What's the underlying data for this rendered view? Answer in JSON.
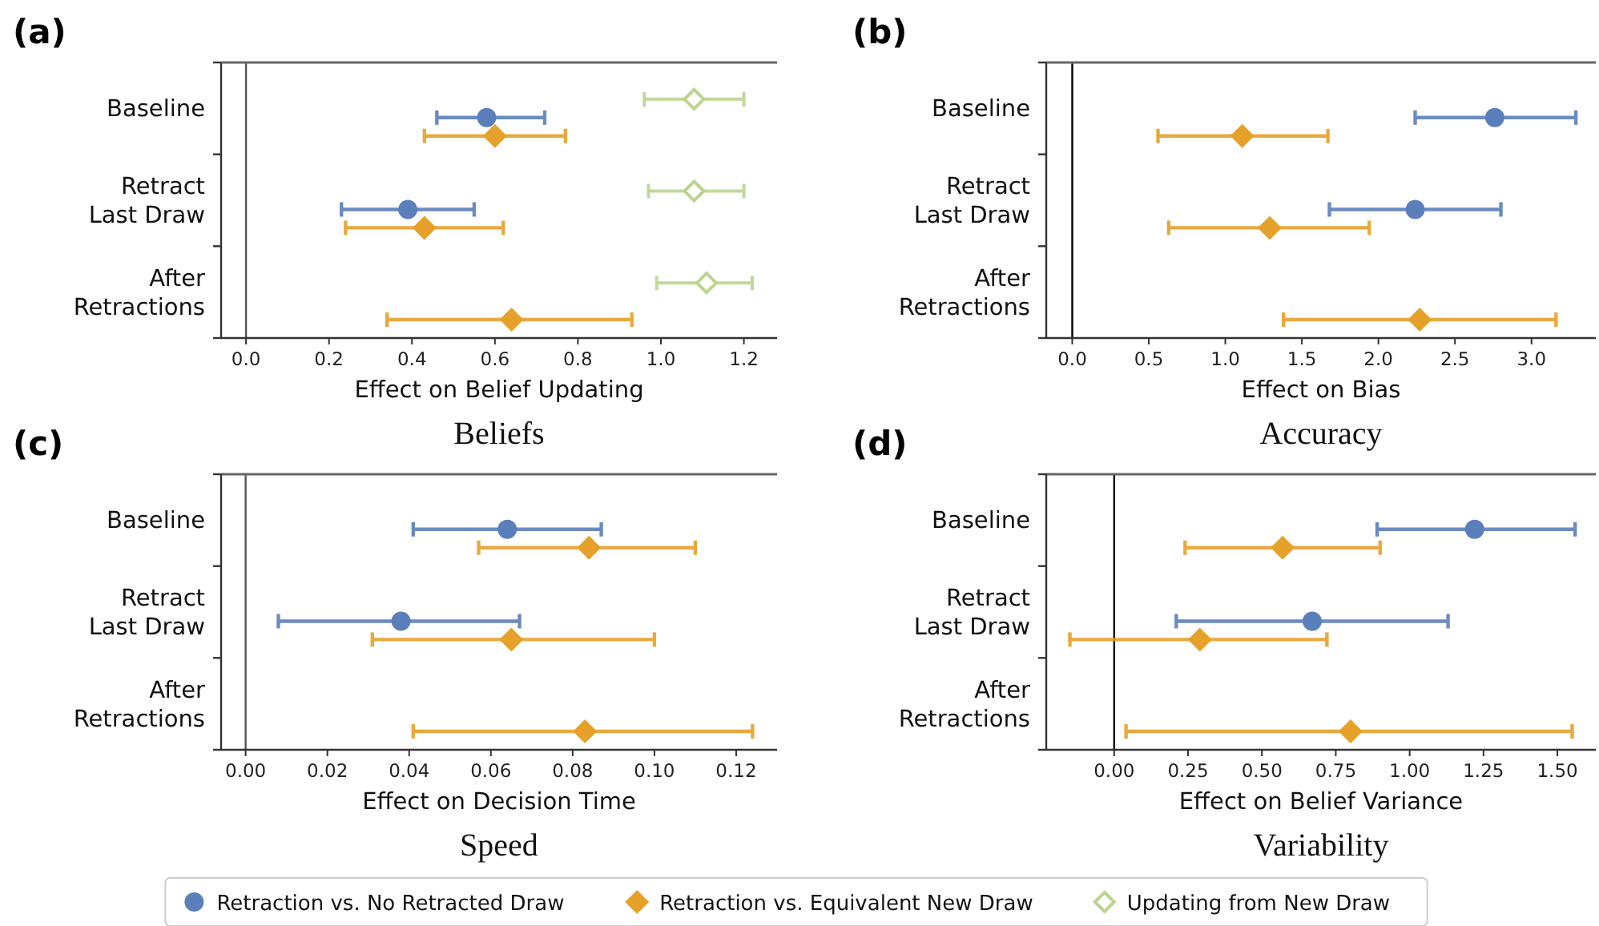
{
  "chart_data": [
    {
      "type": "scatter",
      "orientation": "horizontal",
      "title": "Beliefs",
      "annotations": [
        "(a)"
      ],
      "xlabel": "Effect on Belief Updating",
      "categories": [
        "Baseline",
        "Retract\nLast Draw",
        "After\nRetractions"
      ],
      "xlim": [
        -0.06,
        1.28
      ],
      "xticks": [
        {
          "value": 0,
          "label": "0.0"
        },
        {
          "value": 0.2,
          "label": "0.2"
        },
        {
          "value": 0.4,
          "label": "0.4"
        },
        {
          "value": 0.6,
          "label": "0.6"
        },
        {
          "value": 0.8,
          "label": "0.8"
        },
        {
          "value": 1,
          "label": "1.0"
        },
        {
          "value": 1.2,
          "label": "1.2"
        }
      ],
      "ref_lines": [
        {
          "axis": "x",
          "value": 0,
          "color": "#555555"
        }
      ],
      "legend": "bottom",
      "grid": false,
      "series": [
        {
          "name": "Retraction vs. No Retracted Draw",
          "color": "#5b7fba",
          "marker": "circle",
          "values": [
            0.58,
            0.39,
            null
          ],
          "errors": [
            [
              0.46,
              0.72
            ],
            [
              0.23,
              0.55
            ],
            null
          ]
        },
        {
          "name": "Retraction vs. Equivalent New Draw",
          "color": "#e5a12a",
          "marker": "diamond",
          "values": [
            0.6,
            0.43,
            0.64
          ],
          "errors": [
            [
              0.43,
              0.77
            ],
            [
              0.24,
              0.62
            ],
            [
              0.34,
              0.93
            ]
          ]
        },
        {
          "name": "Updating from New Draw",
          "color": "#bcd48f",
          "marker": "diamond",
          "values": [
            1.08,
            1.08,
            1.11
          ],
          "errors": [
            [
              0.96,
              1.2
            ],
            [
              0.97,
              1.2
            ],
            [
              0.99,
              1.22
            ]
          ]
        }
      ]
    },
    {
      "type": "scatter",
      "orientation": "horizontal",
      "title": "Accuracy",
      "annotations": [
        "(b)"
      ],
      "xlabel": "Effect on Bias",
      "categories": [
        "Baseline",
        "Retract\nLast Draw",
        "After\nRetractions"
      ],
      "xlim": [
        -0.17,
        3.42
      ],
      "xticks": [
        {
          "value": 0,
          "label": "0.0"
        },
        {
          "value": 0.5,
          "label": "0.5"
        },
        {
          "value": 1,
          "label": "1.0"
        },
        {
          "value": 1.5,
          "label": "1.5"
        },
        {
          "value": 2,
          "label": "2.0"
        },
        {
          "value": 2.5,
          "label": "2.5"
        },
        {
          "value": 3,
          "label": "3.0"
        }
      ],
      "ref_lines": [
        {
          "axis": "x",
          "value": 0,
          "color": "#000000"
        }
      ],
      "grid": false,
      "series": [
        {
          "color": "#5b7fba",
          "marker": "circle",
          "values": [
            2.76,
            2.24,
            null
          ],
          "errors": [
            [
              2.24,
              3.29
            ],
            [
              1.68,
              2.8
            ],
            null
          ]
        },
        {
          "color": "#e5a12a",
          "marker": "diamond",
          "values": [
            1.11,
            1.29,
            2.27
          ],
          "errors": [
            [
              0.56,
              1.67
            ],
            [
              0.63,
              1.94
            ],
            [
              1.38,
              3.16
            ]
          ]
        }
      ]
    },
    {
      "type": "scatter",
      "orientation": "horizontal",
      "title": "Speed",
      "annotations": [
        "(c)"
      ],
      "xlabel": "Effect on Decision Time",
      "categories": [
        "Baseline",
        "Retract\nLast Draw",
        "After\nRetractions"
      ],
      "xlim": [
        -0.006,
        0.13
      ],
      "xticks": [
        {
          "value": 0,
          "label": "0.00"
        },
        {
          "value": 0.02,
          "label": "0.02"
        },
        {
          "value": 0.04,
          "label": "0.04"
        },
        {
          "value": 0.06,
          "label": "0.06"
        },
        {
          "value": 0.08,
          "label": "0.08"
        },
        {
          "value": 0.1,
          "label": "0.10"
        },
        {
          "value": 0.12,
          "label": "0.12"
        }
      ],
      "ref_lines": [
        {
          "axis": "x",
          "value": 0,
          "color": "#555555"
        }
      ],
      "grid": false,
      "series": [
        {
          "color": "#5b7fba",
          "marker": "circle",
          "values": [
            0.064,
            0.038,
            null
          ],
          "errors": [
            [
              0.041,
              0.087
            ],
            [
              0.008,
              0.067
            ],
            null
          ]
        },
        {
          "color": "#e5a12a",
          "marker": "diamond",
          "values": [
            0.084,
            0.065,
            0.083
          ],
          "errors": [
            [
              0.057,
              0.11
            ],
            [
              0.031,
              0.1
            ],
            [
              0.041,
              0.124
            ]
          ]
        }
      ]
    },
    {
      "type": "scatter",
      "orientation": "horizontal",
      "title": "Variability",
      "annotations": [
        "(d)"
      ],
      "xlabel": "Effect on Belief Variance",
      "categories": [
        "Baseline",
        "Retract\nLast Draw",
        "After\nRetractions"
      ],
      "xlim": [
        -0.23,
        1.63
      ],
      "xticks": [
        {
          "value": 0,
          "label": "0.00"
        },
        {
          "value": 0.25,
          "label": "0.25"
        },
        {
          "value": 0.5,
          "label": "0.50"
        },
        {
          "value": 0.75,
          "label": "0.75"
        },
        {
          "value": 1,
          "label": "1.00"
        },
        {
          "value": 1.25,
          "label": "1.25"
        },
        {
          "value": 1.5,
          "label": "1.50"
        }
      ],
      "ref_lines": [
        {
          "axis": "x",
          "value": 0,
          "color": "#000000"
        }
      ],
      "grid": false,
      "series": [
        {
          "color": "#5b7fba",
          "marker": "circle",
          "values": [
            1.22,
            0.67,
            null
          ],
          "errors": [
            [
              0.89,
              1.56
            ],
            [
              0.21,
              1.13
            ],
            null
          ]
        },
        {
          "color": "#e5a12a",
          "marker": "diamond",
          "values": [
            0.57,
            0.29,
            0.8
          ],
          "errors": [
            [
              0.24,
              0.9
            ],
            [
              -0.15,
              0.72
            ],
            [
              0.04,
              1.55
            ]
          ]
        }
      ]
    }
  ]
}
